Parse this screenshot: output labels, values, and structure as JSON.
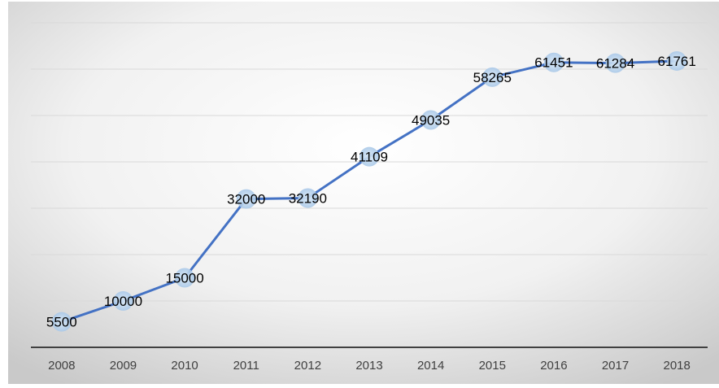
{
  "chart_data": {
    "type": "line",
    "title": "",
    "xlabel": "",
    "ylabel": "",
    "categories": [
      "2008",
      "2009",
      "2010",
      "2011",
      "2012",
      "2013",
      "2014",
      "2015",
      "2016",
      "2017",
      "2018"
    ],
    "series": [
      {
        "values": [
          5500,
          10000,
          15000,
          32000,
          32190,
          41109,
          49035,
          58265,
          61451,
          61284,
          61761
        ]
      }
    ],
    "data_labels": [
      "5500",
      "10000",
      "15000",
      "32000",
      "32190",
      "41109",
      "49035",
      "58265",
      "61451",
      "61284",
      "61761"
    ],
    "ylim": [
      0,
      70000
    ],
    "grid": true,
    "legend": "none",
    "colors": {
      "line": "#4472C4",
      "marker": "#BDD7EE",
      "gridline": "#D9D9D9",
      "axis": "#404040",
      "background_center": "#FFFFFF",
      "background_edge": "#D0D0D0"
    }
  }
}
